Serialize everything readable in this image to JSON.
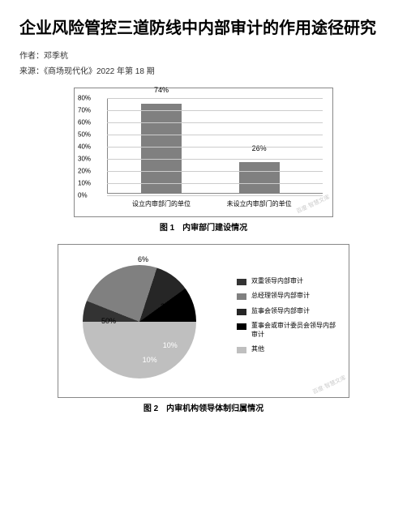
{
  "title": "企业风险管控三道防线中内部审计的作用途径研究",
  "author_line": "作者：邓季杭",
  "source_line": "来源：《商场现代化》2022 年第 18 期",
  "chart1": {
    "type": "bar",
    "caption": "图 1　内审部门建设情况",
    "ylim": [
      0,
      80
    ],
    "ytick_step": 10,
    "y_format": "percent",
    "categories": [
      "设立内审部门的单位",
      "未设立内审部门的单位"
    ],
    "values": [
      74,
      26
    ],
    "value_labels": [
      "74%",
      "26%"
    ],
    "bar_color": "#808080",
    "grid_color": "#cccccc",
    "axis_color": "#888888",
    "background_color": "#ffffff",
    "label_fontsize": 8
  },
  "chart2": {
    "type": "pie",
    "caption": "图 2　内审机构领导体制归属情况",
    "slices": [
      {
        "label": "双重领导内部审计",
        "value": 6,
        "value_label": "6%",
        "color": "#333333"
      },
      {
        "label": "总经理领导内部审计",
        "value": 24,
        "value_label": "24%",
        "color": "#808080"
      },
      {
        "label": "监事会领导内部审计",
        "value": 10,
        "value_label": "10%",
        "color": "#262626"
      },
      {
        "label": "董事会或审计委员会领导内部审计",
        "value": 10,
        "value_label": "10%",
        "color": "#000000"
      },
      {
        "label": "其他",
        "value": 50,
        "value_label": "50%",
        "color": "#bfbfbf"
      }
    ],
    "background_color": "#ffffff",
    "legend_position": "right",
    "label_fontsize": 9
  },
  "watermark": "百度·智慧文库"
}
